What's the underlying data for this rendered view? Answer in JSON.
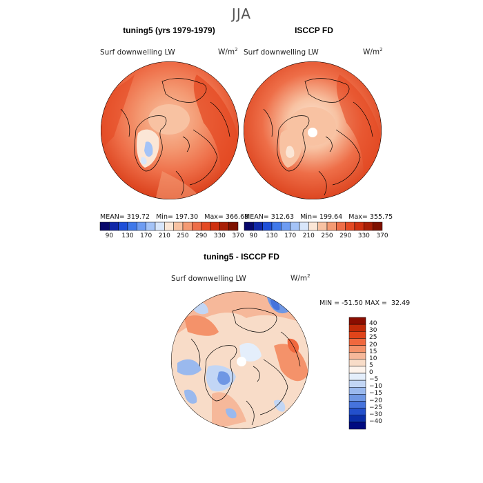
{
  "season": "JJA",
  "panels": [
    {
      "title": "tuning5 (yrs 1979-1979)",
      "variable": "Surf downwelling LW",
      "units": "W/m",
      "units_exp": "2",
      "stats": {
        "mean_label": "MEAN=",
        "mean": "319.72",
        "min_label": "Min=",
        "min": "197.30",
        "max_label": "Max=",
        "max": "366.68"
      }
    },
    {
      "title": "ISCCP FD",
      "variable": "Surf downwelling LW",
      "units": "W/m",
      "units_exp": "2",
      "stats": {
        "mean_label": "MEAN=",
        "mean": "312.63",
        "min_label": "Min=",
        "min": "199.64",
        "max_label": "Max=",
        "max": "355.75"
      }
    },
    {
      "title": "tuning5 - ISCCP FD",
      "variable": "Surf downwelling LW",
      "units": "W/m",
      "units_exp": "2",
      "stats": {
        "min_label": "MIN =",
        "min": "-51.50",
        "max_label": "MAX =",
        "max": "32.49"
      }
    }
  ],
  "colorbar_abs": {
    "colors": [
      "#08086b",
      "#1028a8",
      "#1e4fd8",
      "#3f78ea",
      "#6e9cf2",
      "#a4c3f7",
      "#d8e6fb",
      "#fbe6d6",
      "#f8c2a2",
      "#f49a73",
      "#ee6e48",
      "#e44a23",
      "#cf3110",
      "#a81f06",
      "#7e1100"
    ],
    "labels": [
      "90",
      "130",
      "170",
      "210",
      "250",
      "290",
      "330",
      "370"
    ]
  },
  "colorbar_diff": {
    "colors_top_to_bottom": [
      "#8a0d00",
      "#c02a08",
      "#e0441a",
      "#f0683e",
      "#f4926a",
      "#f6b89a",
      "#f8dcc8",
      "#fdf3ec",
      "#e4eefb",
      "#c2d6f5",
      "#9ab9ee",
      "#6f97e4",
      "#4673dc",
      "#2350cc",
      "#0a2ea8",
      "#000a80"
    ],
    "labels_top_to_bottom": [
      "40",
      "30",
      "25",
      "20",
      "15",
      "10",
      "5",
      "0",
      "−5",
      "−10",
      "−15",
      "−20",
      "−25",
      "−30",
      "−40"
    ]
  }
}
